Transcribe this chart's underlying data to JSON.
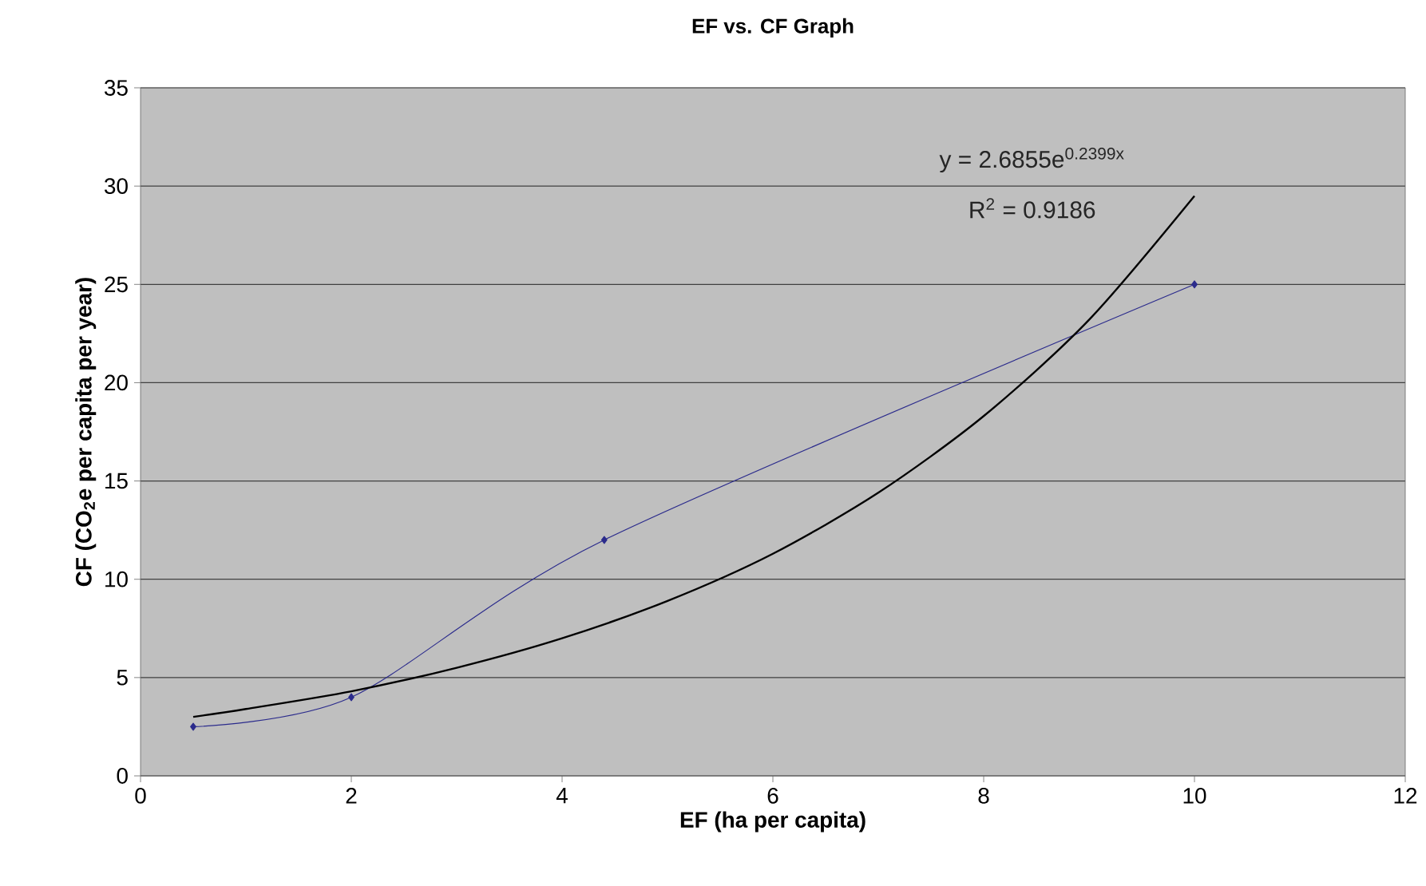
{
  "chart_data": {
    "type": "line",
    "title": "EF vs. CF Graph",
    "xlabel": "EF (ha per capita)",
    "ylabel": "CF (CO$_{2}$e per capita per year)",
    "xlim": [
      0,
      12
    ],
    "xticks": [
      0,
      2,
      4,
      6,
      8,
      10,
      12
    ],
    "ylim": [
      0,
      35
    ],
    "yticks": [
      0,
      5,
      10,
      15,
      20,
      25,
      30,
      35
    ],
    "grid": "y",
    "series": [
      {
        "color": "#2b2b8c",
        "marker": "diamond",
        "x": [
          0.5,
          2,
          4.4,
          10
        ],
        "values": [
          2.5,
          4,
          12,
          25
        ]
      },
      {
        "color": "#000000",
        "marker": "none",
        "x": [
          0.5,
          1,
          2,
          3,
          4,
          5,
          6,
          7,
          8,
          9,
          10
        ],
        "values": [
          3.0,
          3.4,
          4.3,
          5.5,
          7.0,
          8.9,
          11.3,
          14.4,
          18.3,
          23.2,
          29.5
        ]
      }
    ],
    "annotations": [
      "y = 2.6855e$^{0.2399x}$",
      "R$^{2}$ = 0.9186"
    ]
  }
}
